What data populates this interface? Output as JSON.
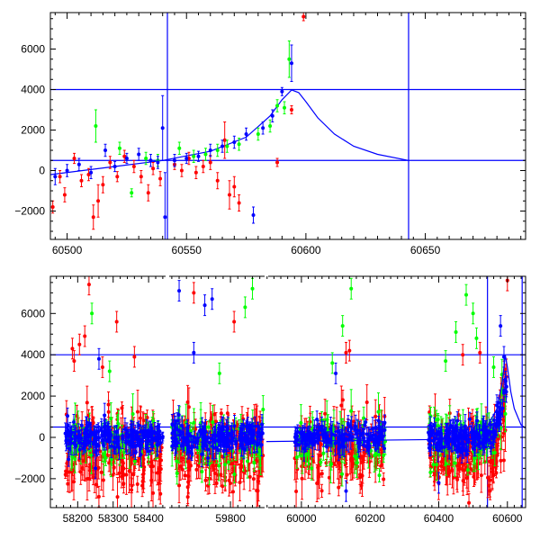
{
  "colors": {
    "red": "#ff0000",
    "green": "#00ff00",
    "blue": "#0000ff",
    "axis": "#000000",
    "model": "#0000ff",
    "background": "#ffffff"
  },
  "chart_data": [
    {
      "type": "scatter",
      "title": "",
      "xlabel": "",
      "ylabel": "",
      "xlim": [
        60493,
        60692
      ],
      "ylim": [
        -3400,
        7800
      ],
      "x_ticks": [
        60500,
        60550,
        60600,
        60650
      ],
      "x_tick_labels": [
        "60500",
        "60550",
        "60600",
        "60650"
      ],
      "y_ticks": [
        -2000,
        0,
        2000,
        4000,
        6000
      ],
      "y_tick_labels": [
        "−2000",
        "0",
        "2000",
        "4000",
        "6000"
      ],
      "hlines": [
        4000,
        500
      ],
      "vlines": [
        60542,
        60643
      ],
      "model_curve": {
        "name": "model",
        "x": [
          60493,
          60520,
          60540,
          60560,
          60575,
          60585,
          60590,
          60594,
          60597,
          60600,
          60605,
          60612,
          60620,
          60630,
          60643
        ],
        "y": [
          -200,
          200,
          500,
          950,
          1650,
          2700,
          3500,
          3980,
          3850,
          3400,
          2600,
          1800,
          1200,
          800,
          500
        ]
      },
      "series": [
        {
          "name": "red",
          "color": "#ff0000",
          "x": [
            60494,
            60497,
            60499,
            60503,
            60506,
            60509,
            60511,
            60513,
            60515,
            60518,
            60521,
            60524,
            60528,
            60531,
            60534,
            60536,
            60539,
            60545,
            60548,
            60551,
            60554,
            60557,
            60560,
            60563,
            60566,
            60568,
            60570,
            60572,
            60588,
            60594,
            60599
          ],
          "y": [
            -1800,
            -300,
            -1200,
            600,
            -500,
            -200,
            -2300,
            -1500,
            -700,
            400,
            -300,
            700,
            200,
            -300,
            -1100,
            100,
            -400,
            300,
            0,
            600,
            -100,
            200,
            400,
            -500,
            1500,
            -1200,
            -800,
            -1600,
            400,
            3000,
            7600
          ],
          "err": [
            300,
            300,
            350,
            250,
            300,
            300,
            600,
            800,
            400,
            300,
            250,
            300,
            300,
            300,
            400,
            300,
            350,
            250,
            300,
            300,
            300,
            300,
            350,
            400,
            900,
            700,
            500,
            400,
            200,
            200,
            200
          ]
        },
        {
          "name": "green",
          "color": "#00ff00",
          "x": [
            60512,
            60522,
            60527,
            60533,
            60538,
            60547,
            60553,
            60558,
            60563,
            60567,
            60572,
            60580,
            60585,
            60588,
            60591,
            60593
          ],
          "y": [
            2200,
            1100,
            -1100,
            600,
            500,
            1100,
            700,
            800,
            1000,
            1200,
            1300,
            1800,
            2200,
            3200,
            3100,
            5500
          ],
          "err": [
            800,
            300,
            200,
            300,
            300,
            300,
            300,
            300,
            300,
            300,
            300,
            300,
            300,
            300,
            300,
            900
          ]
        },
        {
          "name": "blue",
          "color": "#0000ff",
          "x": [
            60495,
            60500,
            60505,
            60510,
            60516,
            60520,
            60525,
            60530,
            60535,
            60538,
            60540,
            60541,
            60545,
            60550,
            60555,
            60560,
            60565,
            60570,
            60575,
            60578,
            60582,
            60586,
            60590,
            60594
          ],
          "y": [
            -300,
            0,
            300,
            -100,
            1000,
            200,
            600,
            800,
            500,
            400,
            2100,
            -2300,
            500,
            600,
            700,
            1000,
            1200,
            1400,
            1800,
            -2200,
            2100,
            2700,
            3900,
            5300
          ],
          "err": [
            400,
            300,
            300,
            300,
            300,
            250,
            250,
            300,
            300,
            300,
            1600,
            2200,
            300,
            250,
            250,
            300,
            300,
            300,
            300,
            400,
            300,
            300,
            200,
            900
          ]
        }
      ]
    },
    {
      "type": "scatter",
      "title": "",
      "xlabel": "",
      "ylabel": "",
      "ylim": [
        -3400,
        7800
      ],
      "broken_x_axis": true,
      "segments": [
        {
          "xlim": [
            58123,
            58453
          ],
          "ticks": [
            58200,
            58300,
            58400
          ],
          "tick_labels": [
            "58200",
            "58300",
            "58400"
          ]
        },
        {
          "xlim": [
            59628,
            59898
          ],
          "ticks": [
            59800
          ],
          "tick_labels": [
            "59800"
          ]
        },
        {
          "xlim": [
            59898,
            60653
          ],
          "ticks": [
            60000,
            60200,
            60400,
            60600
          ],
          "tick_labels": [
            "60000",
            "60200",
            "60400",
            "60600"
          ]
        }
      ],
      "y_ticks": [
        -2000,
        0,
        2000,
        4000,
        6000
      ],
      "y_tick_labels": [
        "−2000",
        "0",
        "2000",
        "4000",
        "6000"
      ],
      "hlines": [
        4000,
        500
      ],
      "vlines": [
        60542,
        60643
      ],
      "model_curve": {
        "name": "model",
        "x": [
          59898,
          60400,
          60500,
          60540,
          60570,
          60585,
          60594,
          60600,
          60610,
          60620,
          60640,
          60653
        ],
        "y": [
          -200,
          -100,
          100,
          500,
          1400,
          2700,
          3980,
          3400,
          2200,
          1400,
          600,
          450
        ]
      },
      "clusters": [
        {
          "xlim": [
            58165,
            58440
          ],
          "count": 200
        },
        {
          "xlim": [
            59640,
            59890
          ],
          "count": 200
        },
        {
          "xlim": [
            59980,
            60245
          ],
          "count": 160
        },
        {
          "xlim": [
            60370,
            60600
          ],
          "count": 190
        }
      ],
      "outliers": {
        "red": [
          [
            58185,
            4300
          ],
          [
            58190,
            3700
          ],
          [
            58205,
            4500
          ],
          [
            58220,
            4900
          ],
          [
            58232,
            7400
          ],
          [
            58270,
            3400
          ],
          [
            58310,
            5600
          ],
          [
            58360,
            3900
          ],
          [
            60130,
            4100
          ],
          [
            60140,
            4200
          ],
          [
            60470,
            4000
          ],
          [
            60520,
            4100
          ],
          [
            60600,
            7600
          ],
          [
            59700,
            7000
          ],
          [
            59810,
            5600
          ]
        ],
        "green": [
          [
            58240,
            6000
          ],
          [
            58290,
            3200
          ],
          [
            59860,
            7200
          ],
          [
            59840,
            6300
          ],
          [
            59770,
            3100
          ],
          [
            60120,
            5400
          ],
          [
            60145,
            7200
          ],
          [
            60090,
            3600
          ],
          [
            60450,
            5100
          ],
          [
            60480,
            6900
          ],
          [
            60500,
            6000
          ],
          [
            60510,
            4800
          ],
          [
            60420,
            3700
          ],
          [
            60560,
            3400
          ]
        ],
        "blue": [
          [
            58260,
            3800
          ],
          [
            58250,
            -1500
          ],
          [
            59660,
            7100
          ],
          [
            59750,
            6700
          ],
          [
            59730,
            6400
          ],
          [
            59700,
            4100
          ],
          [
            60100,
            3100
          ],
          [
            60400,
            -2200
          ],
          [
            60580,
            5400
          ],
          [
            60590,
            3900
          ],
          [
            60130,
            -2600
          ]
        ]
      }
    }
  ]
}
